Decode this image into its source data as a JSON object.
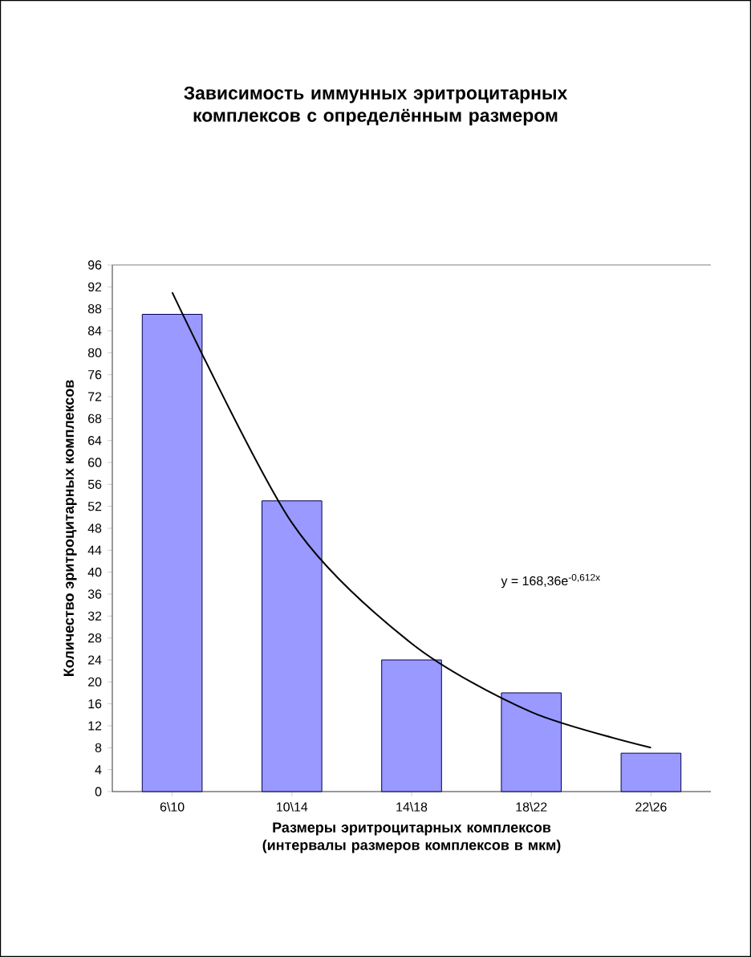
{
  "chart_data": {
    "type": "bar",
    "title": "Зависимость иммунных эритроцитарных комплексов с определённым размером",
    "xlabel": "Размеры эритроцитарных комплексов (интервалы размеров комплексов в мкм)",
    "ylabel": "Количество эритроцитарных комплексов",
    "categories": [
      "6\\10",
      "10\\14",
      "14\\18",
      "18\\22",
      "22\\26"
    ],
    "series": [
      {
        "type": "bar",
        "color": "#9999ff",
        "values": [
          87,
          53,
          24,
          18,
          7
        ]
      },
      {
        "type": "line",
        "color": "#000000",
        "values": [
          91,
          49,
          27,
          14.5,
          8
        ]
      }
    ],
    "ylim": [
      0,
      96
    ],
    "yticks": [
      0,
      4,
      8,
      12,
      16,
      20,
      24,
      28,
      32,
      36,
      40,
      44,
      48,
      52,
      56,
      60,
      64,
      68,
      72,
      76,
      80,
      84,
      88,
      92,
      96
    ],
    "annotations": [
      "y = 168,36e$^{-0,612x}$"
    ],
    "marker": "none"
  }
}
